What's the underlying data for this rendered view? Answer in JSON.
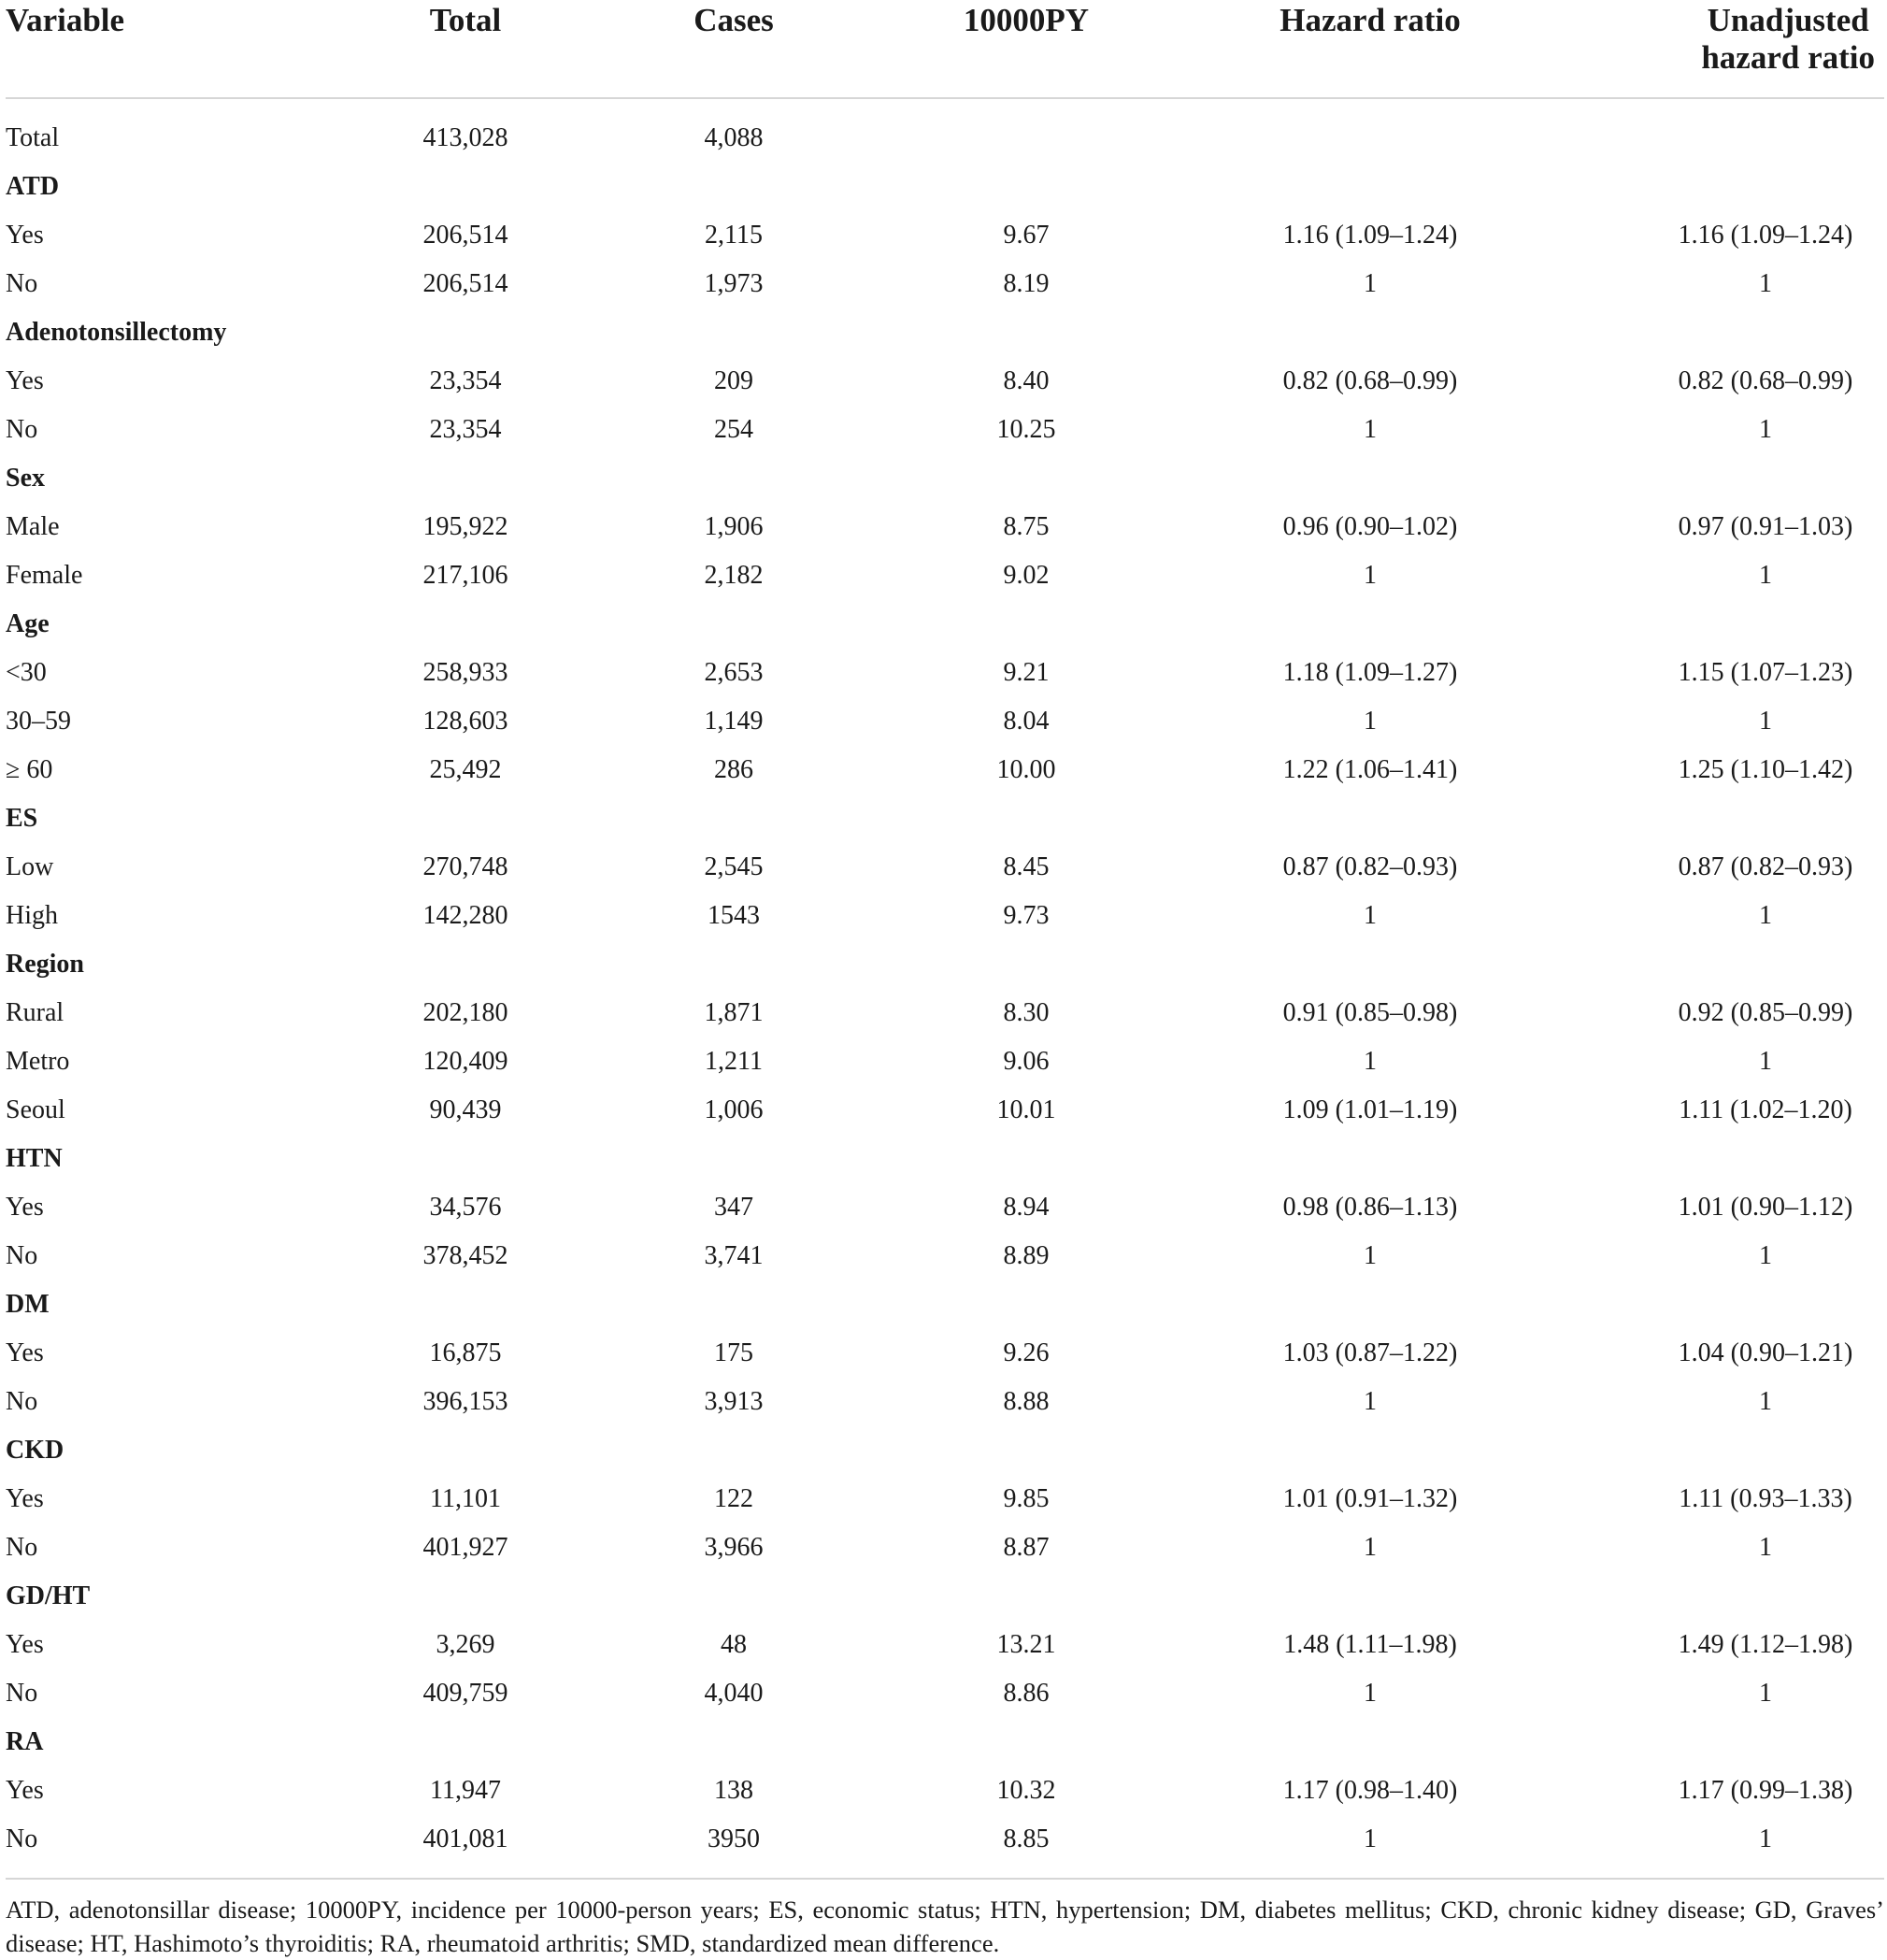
{
  "table": {
    "headers": {
      "variable": "Variable",
      "total": "Total",
      "cases": "Cases",
      "py": "10000PY",
      "hr": "Hazard ratio",
      "uhr_line1": "Unadjusted",
      "uhr_line2": "hazard ratio"
    },
    "rows": [
      {
        "type": "data",
        "label": "Total",
        "total": "413,028",
        "cases": "4,088",
        "py": "",
        "hr": "",
        "uhr": ""
      },
      {
        "type": "group",
        "label": "ATD"
      },
      {
        "type": "data",
        "label": "Yes",
        "total": "206,514",
        "cases": "2,115",
        "py": "9.67",
        "hr": "1.16 (1.09–1.24)",
        "uhr": "1.16 (1.09–1.24)"
      },
      {
        "type": "data",
        "label": "No",
        "total": "206,514",
        "cases": "1,973",
        "py": "8.19",
        "hr": "1",
        "uhr": "1"
      },
      {
        "type": "group",
        "label": "Adenotonsillectomy"
      },
      {
        "type": "data",
        "label": "Yes",
        "total": "23,354",
        "cases": "209",
        "py": "8.40",
        "hr": "0.82 (0.68–0.99)",
        "uhr": "0.82 (0.68–0.99)"
      },
      {
        "type": "data",
        "label": "No",
        "total": "23,354",
        "cases": "254",
        "py": "10.25",
        "hr": "1",
        "uhr": "1"
      },
      {
        "type": "group",
        "label": "Sex"
      },
      {
        "type": "data",
        "label": "Male",
        "total": "195,922",
        "cases": "1,906",
        "py": "8.75",
        "hr": "0.96 (0.90–1.02)",
        "uhr": "0.97 (0.91–1.03)"
      },
      {
        "type": "data",
        "label": "Female",
        "total": "217,106",
        "cases": "2,182",
        "py": "9.02",
        "hr": "1",
        "uhr": "1"
      },
      {
        "type": "group",
        "label": "Age"
      },
      {
        "type": "data",
        "label": "<30",
        "total": "258,933",
        "cases": "2,653",
        "py": "9.21",
        "hr": "1.18 (1.09–1.27)",
        "uhr": "1.15 (1.07–1.23)"
      },
      {
        "type": "data",
        "label": "30–59",
        "total": "128,603",
        "cases": "1,149",
        "py": "8.04",
        "hr": "1",
        "uhr": "1"
      },
      {
        "type": "data",
        "label": "≥ 60",
        "total": "25,492",
        "cases": "286",
        "py": "10.00",
        "hr": "1.22 (1.06–1.41)",
        "uhr": "1.25 (1.10–1.42)"
      },
      {
        "type": "group",
        "label": "ES"
      },
      {
        "type": "data",
        "label": "Low",
        "total": "270,748",
        "cases": "2,545",
        "py": "8.45",
        "hr": "0.87 (0.82–0.93)",
        "uhr": "0.87 (0.82–0.93)"
      },
      {
        "type": "data",
        "label": "High",
        "total": "142,280",
        "cases": "1543",
        "py": "9.73",
        "hr": "1",
        "uhr": "1"
      },
      {
        "type": "group",
        "label": "Region"
      },
      {
        "type": "data",
        "label": "Rural",
        "total": "202,180",
        "cases": "1,871",
        "py": "8.30",
        "hr": "0.91 (0.85–0.98)",
        "uhr": "0.92 (0.85–0.99)"
      },
      {
        "type": "data",
        "label": "Metro",
        "total": "120,409",
        "cases": "1,211",
        "py": "9.06",
        "hr": "1",
        "uhr": "1"
      },
      {
        "type": "data",
        "label": "Seoul",
        "total": "90,439",
        "cases": "1,006",
        "py": "10.01",
        "hr": "1.09 (1.01–1.19)",
        "uhr": "1.11 (1.02–1.20)"
      },
      {
        "type": "group",
        "label": "HTN"
      },
      {
        "type": "data",
        "label": "Yes",
        "total": "34,576",
        "cases": "347",
        "py": "8.94",
        "hr": "0.98 (0.86–1.13)",
        "uhr": "1.01 (0.90–1.12)"
      },
      {
        "type": "data",
        "label": "No",
        "total": "378,452",
        "cases": "3,741",
        "py": "8.89",
        "hr": "1",
        "uhr": "1"
      },
      {
        "type": "group",
        "label": "DM"
      },
      {
        "type": "data",
        "label": "Yes",
        "total": "16,875",
        "cases": "175",
        "py": "9.26",
        "hr": "1.03 (0.87–1.22)",
        "uhr": "1.04 (0.90–1.21)"
      },
      {
        "type": "data",
        "label": "No",
        "total": "396,153",
        "cases": "3,913",
        "py": "8.88",
        "hr": "1",
        "uhr": "1"
      },
      {
        "type": "group",
        "label": "CKD"
      },
      {
        "type": "data",
        "label": "Yes",
        "total": "11,101",
        "cases": "122",
        "py": "9.85",
        "hr": "1.01 (0.91–1.32)",
        "uhr": "1.11 (0.93–1.33)"
      },
      {
        "type": "data",
        "label": "No",
        "total": "401,927",
        "cases": "3,966",
        "py": "8.87",
        "hr": "1",
        "uhr": "1"
      },
      {
        "type": "group",
        "label": "GD/HT"
      },
      {
        "type": "data",
        "label": "Yes",
        "total": "3,269",
        "cases": "48",
        "py": "13.21",
        "hr": "1.48 (1.11–1.98)",
        "uhr": "1.49 (1.12–1.98)"
      },
      {
        "type": "data",
        "label": "No",
        "total": "409,759",
        "cases": "4,040",
        "py": "8.86",
        "hr": "1",
        "uhr": "1"
      },
      {
        "type": "group",
        "label": "RA"
      },
      {
        "type": "data",
        "label": "Yes",
        "total": "11,947",
        "cases": "138",
        "py": "10.32",
        "hr": "1.17 (0.98–1.40)",
        "uhr": "1.17 (0.99–1.38)"
      },
      {
        "type": "data",
        "label": "No",
        "total": "401,081",
        "cases": "3950",
        "py": "8.85",
        "hr": "1",
        "uhr": "1"
      }
    ],
    "footnote": "ATD, adenotonsillar disease; 10000PY, incidence per 10000-person years; ES, economic status; HTN, hypertension; DM, diabetes mellitus; CKD, chronic kidney disease; GD, Graves’ disease; HT, Hashimoto’s thyroiditis; RA, rheumatoid arthritis; SMD, standardized mean difference."
  }
}
